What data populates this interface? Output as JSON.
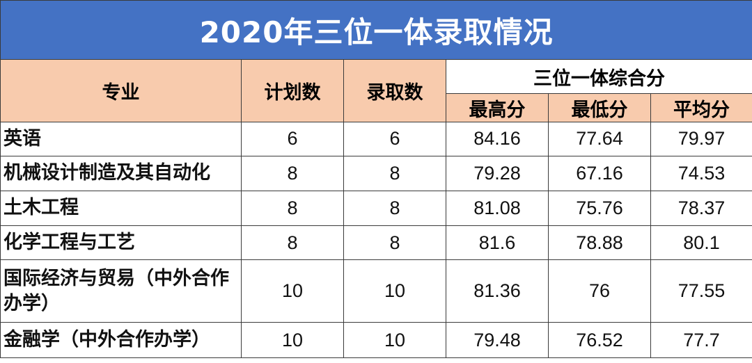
{
  "title": "2020年三位一体录取情况",
  "headers": {
    "major": "专业",
    "plan": "计划数",
    "admitted": "录取数",
    "composite": "三位一体综合分",
    "max": "最高分",
    "min": "最低分",
    "avg": "平均分"
  },
  "rows": [
    {
      "major": "英语",
      "plan": "6",
      "admitted": "6",
      "max": "84.16",
      "min": "77.64",
      "avg": "79.97"
    },
    {
      "major": "机械设计制造及其自动化",
      "plan": "8",
      "admitted": "8",
      "max": "79.28",
      "min": "67.16",
      "avg": "74.53"
    },
    {
      "major": "土木工程",
      "plan": "8",
      "admitted": "8",
      "max": "81.08",
      "min": "75.76",
      "avg": "78.37"
    },
    {
      "major": "化学工程与工艺",
      "plan": "8",
      "admitted": "8",
      "max": "81.6",
      "min": "78.88",
      "avg": "80.1"
    },
    {
      "major": "国际经济与贸易（中外合作办学）",
      "plan": "10",
      "admitted": "10",
      "max": "81.36",
      "min": "76",
      "avg": "77.55"
    },
    {
      "major": "金融学（中外合作办学）",
      "plan": "10",
      "admitted": "10",
      "max": "79.48",
      "min": "76.52",
      "avg": "77.7"
    }
  ],
  "colors": {
    "title_bg": "#4472c4",
    "header_bg": "#f8cbad",
    "border": "#3a3a3a"
  }
}
